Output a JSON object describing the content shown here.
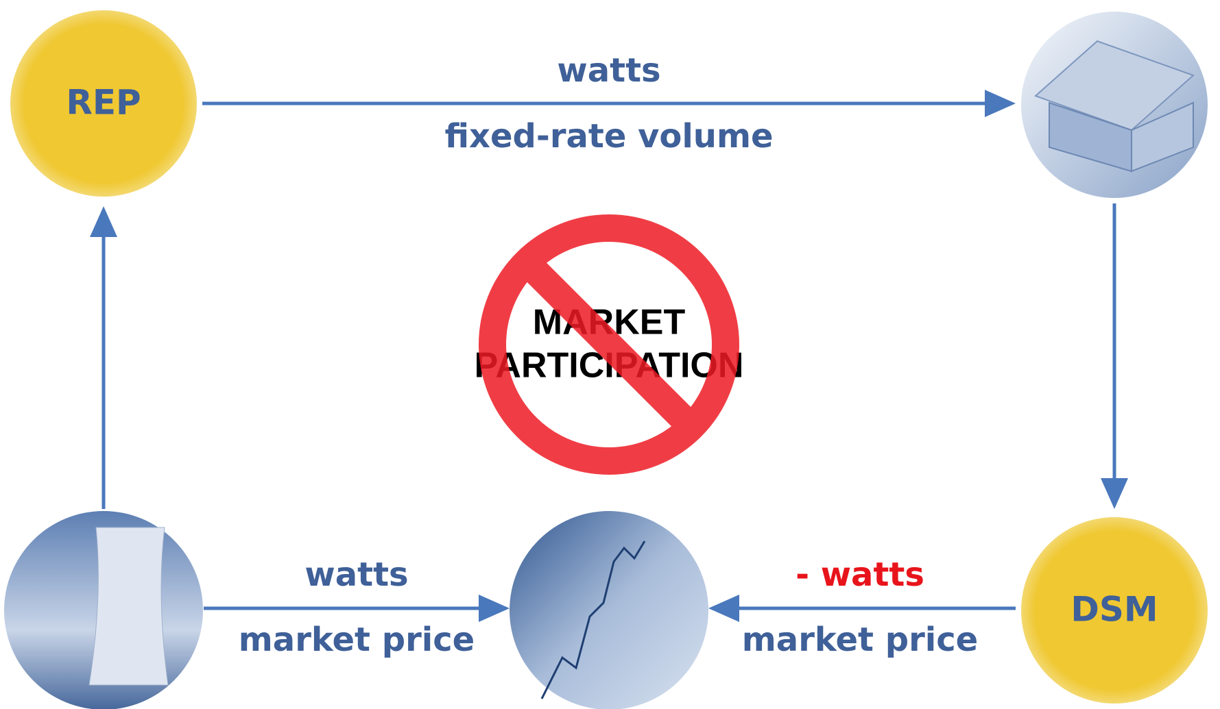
{
  "nodes": [
    {
      "label": "REP"
    },
    {
      "label": "DSM"
    }
  ],
  "edges": [
    {
      "labels": [
        "watts",
        "fixed-rate volume"
      ]
    },
    {
      "labels": [
        "watts",
        "market price"
      ]
    },
    {
      "labels": [
        "- watts",
        "market price"
      ]
    }
  ],
  "center": {
    "lines": [
      "MARKET",
      "PARTICIPATION"
    ]
  }
}
